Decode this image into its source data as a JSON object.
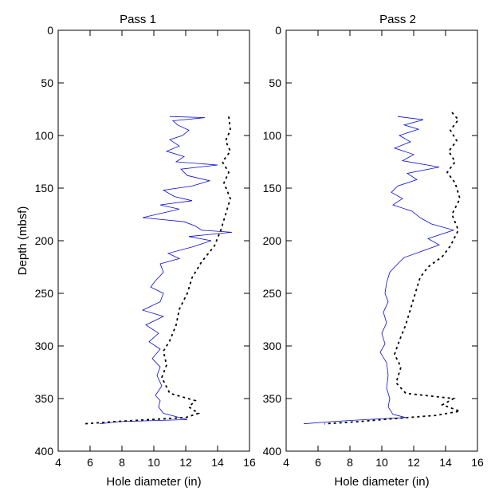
{
  "chart_data": [
    {
      "type": "line",
      "title": "Pass 1",
      "xlabel": "Hole diameter (in)",
      "ylabel": "Depth (mbsf)",
      "xlim": [
        4,
        16
      ],
      "ylim": [
        0,
        400
      ],
      "y_inverted": true,
      "x_ticks": [
        4,
        6,
        8,
        10,
        12,
        14,
        16
      ],
      "y_ticks": [
        0,
        50,
        100,
        150,
        200,
        250,
        300,
        350,
        400
      ],
      "grid": false,
      "series": [
        {
          "style": "solid",
          "color": "#0b0bd0",
          "points": [
            [
              11,
              82
            ],
            [
              13.2,
              83
            ],
            [
              11.2,
              86
            ],
            [
              11.5,
              90
            ],
            [
              12.2,
              95
            ],
            [
              11.8,
              100
            ],
            [
              11.0,
              104
            ],
            [
              11.6,
              110
            ],
            [
              10.8,
              115
            ],
            [
              11.9,
              120
            ],
            [
              11.4,
              125
            ],
            [
              14.0,
              128
            ],
            [
              11.7,
              132
            ],
            [
              12.1,
              138
            ],
            [
              13.5,
              143
            ],
            [
              12.4,
              148
            ],
            [
              10.6,
              152
            ],
            [
              11.3,
              158
            ],
            [
              12.4,
              162
            ],
            [
              10.4,
              166
            ],
            [
              11.6,
              170
            ],
            [
              9.3,
              178
            ],
            [
              11.9,
              182
            ],
            [
              12.6,
              186
            ],
            [
              13.0,
              190
            ],
            [
              14.9,
              192
            ],
            [
              12.2,
              196
            ],
            [
              13.6,
              200
            ],
            [
              12.4,
              206
            ],
            [
              10.9,
              212
            ],
            [
              11.6,
              217
            ],
            [
              10.4,
              222
            ],
            [
              10.6,
              230
            ],
            [
              10.1,
              238
            ],
            [
              9.8,
              244
            ],
            [
              10.6,
              250
            ],
            [
              10.4,
              258
            ],
            [
              9.3,
              266
            ],
            [
              10.6,
              272
            ],
            [
              9.5,
              280
            ],
            [
              10.3,
              288
            ],
            [
              9.7,
              296
            ],
            [
              10.4,
              303
            ],
            [
              9.9,
              312
            ],
            [
              10.4,
              320
            ],
            [
              10.2,
              328
            ],
            [
              10.5,
              338
            ],
            [
              10.1,
              347
            ],
            [
              10.4,
              352
            ],
            [
              10.3,
              358
            ],
            [
              10.6,
              364
            ],
            [
              12.1,
              370
            ],
            [
              7.8,
              372
            ],
            [
              6.6,
              374
            ]
          ]
        },
        {
          "style": "dashed",
          "color": "#000000",
          "points": [
            [
              14.7,
              82
            ],
            [
              14.8,
              95
            ],
            [
              14.5,
              105
            ],
            [
              14.8,
              115
            ],
            [
              14.3,
              125
            ],
            [
              14.7,
              135
            ],
            [
              14.4,
              145
            ],
            [
              14.8,
              160
            ],
            [
              14.5,
              175
            ],
            [
              14.2,
              190
            ],
            [
              13.8,
              205
            ],
            [
              13.0,
              220
            ],
            [
              12.4,
              235
            ],
            [
              12.1,
              250
            ],
            [
              11.6,
              265
            ],
            [
              11.4,
              280
            ],
            [
              11.0,
              295
            ],
            [
              10.6,
              305
            ],
            [
              10.8,
              318
            ],
            [
              10.5,
              330
            ],
            [
              11.0,
              345
            ],
            [
              12.6,
              352
            ],
            [
              12.2,
              358
            ],
            [
              12.8,
              364
            ],
            [
              12.0,
              368
            ],
            [
              7.5,
              372
            ],
            [
              5.6,
              374
            ]
          ]
        }
      ]
    },
    {
      "type": "line",
      "title": "Pass 2",
      "xlabel": "Hole diameter (in)",
      "ylabel": "",
      "xlim": [
        4,
        16
      ],
      "ylim": [
        0,
        400
      ],
      "y_inverted": true,
      "x_ticks": [
        4,
        6,
        8,
        10,
        12,
        14,
        16
      ],
      "y_ticks": [
        0,
        50,
        100,
        150,
        200,
        250,
        300,
        350,
        400
      ],
      "grid": false,
      "series": [
        {
          "style": "solid",
          "color": "#0b0bd0",
          "points": [
            [
              11.0,
              82
            ],
            [
              12.6,
              85
            ],
            [
              11.4,
              90
            ],
            [
              12.3,
              94
            ],
            [
              11.1,
              100
            ],
            [
              11.8,
              106
            ],
            [
              10.8,
              112
            ],
            [
              12.0,
              118
            ],
            [
              11.3,
              124
            ],
            [
              13.6,
              130
            ],
            [
              11.6,
              136
            ],
            [
              12.2,
              142
            ],
            [
              11.0,
              148
            ],
            [
              10.6,
              154
            ],
            [
              11.3,
              160
            ],
            [
              10.7,
              166
            ],
            [
              11.9,
              172
            ],
            [
              12.4,
              178
            ],
            [
              13.1,
              184
            ],
            [
              14.5,
              190
            ],
            [
              12.9,
              198
            ],
            [
              13.6,
              204
            ],
            [
              12.5,
              210
            ],
            [
              11.4,
              216
            ],
            [
              11.0,
              222
            ],
            [
              10.5,
              230
            ],
            [
              10.3,
              240
            ],
            [
              10.2,
              250
            ],
            [
              10.4,
              258
            ],
            [
              10.1,
              268
            ],
            [
              10.3,
              278
            ],
            [
              10.0,
              288
            ],
            [
              10.2,
              298
            ],
            [
              9.9,
              306
            ],
            [
              10.3,
              316
            ],
            [
              10.4,
              328
            ],
            [
              10.3,
              340
            ],
            [
              10.5,
              350
            ],
            [
              10.4,
              358
            ],
            [
              10.7,
              365
            ],
            [
              11.5,
              368
            ],
            [
              9.0,
              370
            ],
            [
              6.8,
              372
            ],
            [
              5.1,
              374
            ]
          ]
        },
        {
          "style": "dashed",
          "color": "#000000",
          "points": [
            [
              14.4,
              78
            ],
            [
              14.8,
              85
            ],
            [
              14.3,
              95
            ],
            [
              14.7,
              105
            ],
            [
              14.2,
              115
            ],
            [
              14.6,
              125
            ],
            [
              14.1,
              135
            ],
            [
              14.6,
              145
            ],
            [
              14.9,
              160
            ],
            [
              14.4,
              175
            ],
            [
              14.8,
              190
            ],
            [
              14.3,
              205
            ],
            [
              13.8,
              215
            ],
            [
              12.9,
              225
            ],
            [
              12.4,
              235
            ],
            [
              12.1,
              250
            ],
            [
              11.8,
              265
            ],
            [
              11.5,
              280
            ],
            [
              11.1,
              295
            ],
            [
              10.8,
              308
            ],
            [
              11.2,
              320
            ],
            [
              10.9,
              335
            ],
            [
              11.5,
              345
            ],
            [
              14.5,
              350
            ],
            [
              13.8,
              356
            ],
            [
              14.9,
              362
            ],
            [
              13.4,
              366
            ],
            [
              10.8,
              369
            ],
            [
              8.5,
              372
            ],
            [
              6.4,
              374
            ]
          ]
        }
      ]
    }
  ]
}
